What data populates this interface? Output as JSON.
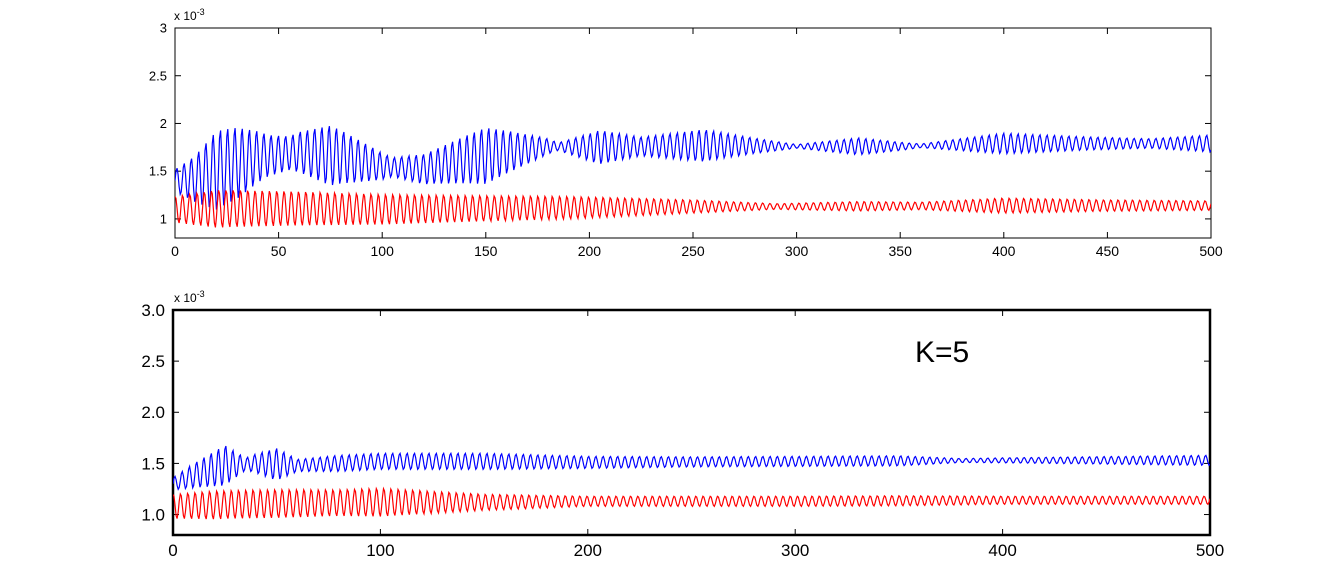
{
  "chart_data": [
    {
      "type": "line",
      "title": "",
      "xlabel": "",
      "ylabel": "",
      "xlim": [
        0,
        500
      ],
      "ylim": [
        0.8,
        3.0
      ],
      "x_ticks": [
        0,
        50,
        100,
        150,
        200,
        250,
        300,
        350,
        400,
        450,
        500
      ],
      "x_tick_labels": [
        "0",
        "50",
        "100",
        "150",
        "200",
        "250",
        "300",
        "350",
        "400",
        "450",
        "500"
      ],
      "y_ticks": [
        1.0,
        1.5,
        2.0,
        2.5,
        3.0
      ],
      "y_tick_labels": [
        "1",
        "1.5",
        "2",
        "2.5",
        "3"
      ],
      "y_multiplier": "x 10",
      "y_multiplier_exponent": "-3",
      "grid": false,
      "annotation": "",
      "series": [
        {
          "color": "#0000ff",
          "period": 3.5,
          "center": [
            [
              0,
              1.4
            ],
            [
              10,
              1.42
            ],
            [
              25,
              1.55
            ],
            [
              40,
              1.65
            ],
            [
              60,
              1.7
            ],
            [
              80,
              1.65
            ],
            [
              100,
              1.55
            ],
            [
              120,
              1.52
            ],
            [
              140,
              1.62
            ],
            [
              160,
              1.7
            ],
            [
              180,
              1.76
            ],
            [
              200,
              1.75
            ],
            [
              230,
              1.76
            ],
            [
              260,
              1.77
            ],
            [
              300,
              1.76
            ],
            [
              350,
              1.76
            ],
            [
              400,
              1.79
            ],
            [
              450,
              1.79
            ],
            [
              500,
              1.79
            ]
          ],
          "amplitude": [
            [
              0,
              0.12
            ],
            [
              8,
              0.22
            ],
            [
              20,
              0.42
            ],
            [
              30,
              0.38
            ],
            [
              45,
              0.22
            ],
            [
              55,
              0.18
            ],
            [
              75,
              0.32
            ],
            [
              95,
              0.18
            ],
            [
              105,
              0.1
            ],
            [
              125,
              0.18
            ],
            [
              150,
              0.3
            ],
            [
              175,
              0.12
            ],
            [
              185,
              0.04
            ],
            [
              205,
              0.18
            ],
            [
              225,
              0.1
            ],
            [
              255,
              0.17
            ],
            [
              280,
              0.08
            ],
            [
              300,
              0.02
            ],
            [
              330,
              0.09
            ],
            [
              360,
              0.02
            ],
            [
              400,
              0.11
            ],
            [
              440,
              0.07
            ],
            [
              470,
              0.05
            ],
            [
              500,
              0.09
            ]
          ]
        },
        {
          "color": "#ff0000",
          "period": 3.5,
          "center": [
            [
              0,
              1.1
            ],
            [
              30,
              1.11
            ],
            [
              60,
              1.11
            ],
            [
              100,
              1.1
            ],
            [
              150,
              1.11
            ],
            [
              200,
              1.12
            ],
            [
              250,
              1.13
            ],
            [
              300,
              1.13
            ],
            [
              400,
              1.14
            ],
            [
              500,
              1.14
            ]
          ],
          "amplitude": [
            [
              0,
              0.14
            ],
            [
              20,
              0.2
            ],
            [
              60,
              0.18
            ],
            [
              100,
              0.16
            ],
            [
              140,
              0.14
            ],
            [
              190,
              0.12
            ],
            [
              250,
              0.07
            ],
            [
              290,
              0.03
            ],
            [
              330,
              0.05
            ],
            [
              360,
              0.04
            ],
            [
              400,
              0.08
            ],
            [
              450,
              0.06
            ],
            [
              500,
              0.05
            ]
          ]
        }
      ]
    },
    {
      "type": "line",
      "title": "",
      "xlabel": "",
      "ylabel": "",
      "xlim": [
        0,
        500
      ],
      "ylim": [
        0.8,
        3.0
      ],
      "x_ticks": [
        0,
        100,
        200,
        300,
        400,
        500
      ],
      "x_tick_labels": [
        "0",
        "100",
        "200",
        "300",
        "400",
        "500"
      ],
      "y_ticks": [
        1.0,
        1.5,
        2.0,
        2.5,
        3.0
      ],
      "y_tick_labels": [
        "1.0",
        "1.5",
        "2.0",
        "2.5",
        "3.0"
      ],
      "y_multiplier": "x 10",
      "y_multiplier_exponent": "-3",
      "grid": false,
      "annotation": "K=5",
      "series": [
        {
          "color": "#0000ff",
          "period": 3.5,
          "center": [
            [
              0,
              1.3
            ],
            [
              10,
              1.38
            ],
            [
              25,
              1.48
            ],
            [
              40,
              1.5
            ],
            [
              60,
              1.48
            ],
            [
              80,
              1.5
            ],
            [
              100,
              1.52
            ],
            [
              150,
              1.52
            ],
            [
              200,
              1.51
            ],
            [
              300,
              1.52
            ],
            [
              400,
              1.53
            ],
            [
              500,
              1.53
            ]
          ],
          "amplitude": [
            [
              0,
              0.06
            ],
            [
              10,
              0.12
            ],
            [
              25,
              0.2
            ],
            [
              35,
              0.06
            ],
            [
              50,
              0.16
            ],
            [
              60,
              0.06
            ],
            [
              80,
              0.08
            ],
            [
              100,
              0.08
            ],
            [
              150,
              0.08
            ],
            [
              200,
              0.06
            ],
            [
              250,
              0.05
            ],
            [
              300,
              0.05
            ],
            [
              350,
              0.05
            ],
            [
              380,
              0.02
            ],
            [
              420,
              0.03
            ],
            [
              460,
              0.04
            ],
            [
              500,
              0.05
            ]
          ]
        },
        {
          "color": "#ff0000",
          "period": 3.5,
          "center": [
            [
              0,
              1.08
            ],
            [
              30,
              1.1
            ],
            [
              60,
              1.11
            ],
            [
              100,
              1.12
            ],
            [
              150,
              1.12
            ],
            [
              200,
              1.13
            ],
            [
              300,
              1.13
            ],
            [
              400,
              1.14
            ],
            [
              500,
              1.14
            ]
          ],
          "amplitude": [
            [
              0,
              0.12
            ],
            [
              20,
              0.14
            ],
            [
              50,
              0.14
            ],
            [
              80,
              0.13
            ],
            [
              100,
              0.14
            ],
            [
              150,
              0.08
            ],
            [
              200,
              0.05
            ],
            [
              250,
              0.05
            ],
            [
              300,
              0.05
            ],
            [
              350,
              0.05
            ],
            [
              400,
              0.04
            ],
            [
              500,
              0.04
            ]
          ]
        }
      ]
    }
  ]
}
